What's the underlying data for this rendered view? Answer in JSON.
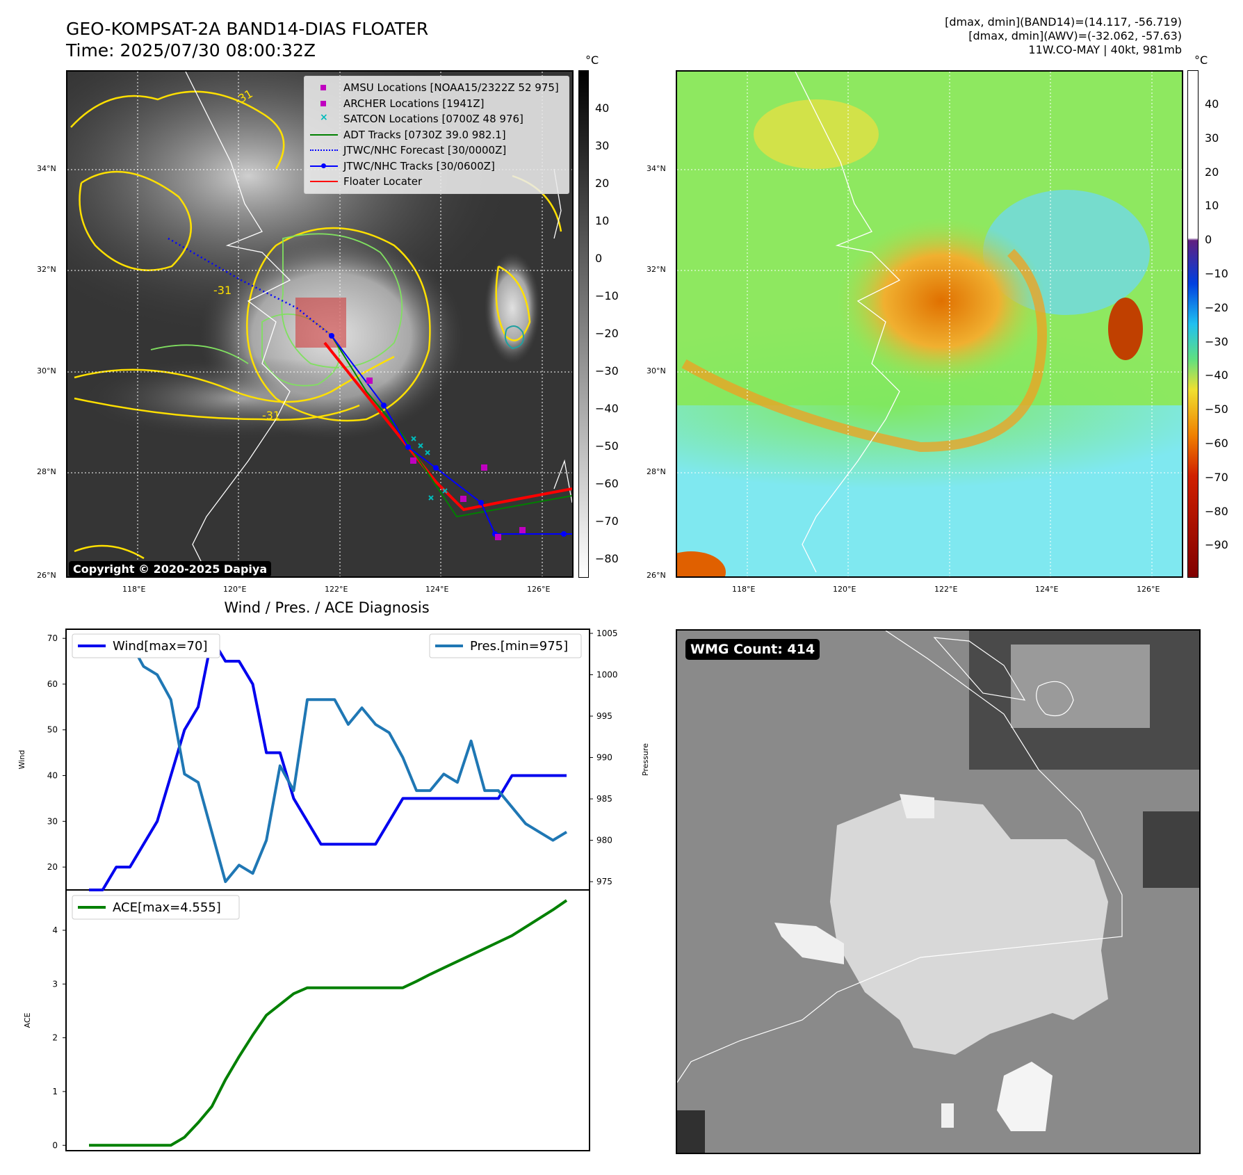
{
  "header": {
    "title_line1": "GEO-KOMPSAT-2A BAND14-DIAS FLOATER",
    "title_line2": "Time: 2025/07/30 08:00:32Z",
    "info_line1": "[dmax, dmin](BAND14)=(14.117, -56.719)",
    "info_line2": "[dmax, dmin](AWV)=(-32.062, -57.63)",
    "info_line3": "11W.CO-MAY | 40kt, 981mb"
  },
  "map_axes": {
    "lat_labels": [
      "34°N",
      "32°N",
      "30°N",
      "28°N",
      "26°N"
    ],
    "lon_labels": [
      "118°E",
      "120°E",
      "122°E",
      "124°E",
      "126°E"
    ],
    "contour_label": "-31"
  },
  "ir_panel": {
    "legend": [
      {
        "label": "AMSU Locations [NOAA15/2322Z 52 975]",
        "marker": "square",
        "color": "#c000c0"
      },
      {
        "label": "ARCHER Locations [1941Z]",
        "marker": "square",
        "color": "#c000c0"
      },
      {
        "label": "SATCON Locations [0700Z 48 976]",
        "marker": "x",
        "color": "#00bbbb"
      },
      {
        "label": "ADT Tracks [0730Z 39.0 982.1]",
        "marker": "line",
        "color": "#008000"
      },
      {
        "label": "JTWC/NHC Forecast [30/0000Z]",
        "marker": "dotted",
        "color": "#0000ff"
      },
      {
        "label": "JTWC/NHC Tracks [30/0600Z]",
        "marker": "line-dot",
        "color": "#0000ff"
      },
      {
        "label": "Floater Locater",
        "marker": "line",
        "color": "#ff0000"
      }
    ],
    "colorbar": {
      "unit": "°C",
      "ticks": [
        "40",
        "30",
        "20",
        "10",
        "0",
        "−10",
        "−20",
        "−30",
        "−40",
        "−50",
        "−60",
        "−70",
        "−80"
      ]
    },
    "copyright": "Copyright © 2020-2025 Dapiya"
  },
  "awv_panel": {
    "colorbar": {
      "unit": "°C",
      "ticks": [
        "40",
        "30",
        "20",
        "10",
        "0",
        "−10",
        "−20",
        "−30",
        "−40",
        "−50",
        "−60",
        "−70",
        "−80",
        "−90"
      ]
    }
  },
  "wmg_panel": {
    "label": "WMG Count: 414"
  },
  "chart_data": [
    {
      "type": "line",
      "title": "Wind / Pres. / ACE Diagnosis",
      "ylabel": "Wind",
      "y2label": "Pressure",
      "ylim": [
        15,
        72
      ],
      "y2lim": [
        974,
        1005.5
      ],
      "yticks": [
        20,
        30,
        40,
        50,
        60,
        70
      ],
      "y2ticks": [
        975,
        980,
        985,
        990,
        995,
        1000,
        1005
      ],
      "series": [
        {
          "name": "Wind[max=70]",
          "axis": "left",
          "color": "#0000ee",
          "values": [
            15,
            15,
            20,
            20,
            25,
            30,
            40,
            50,
            55,
            70,
            65,
            65,
            60,
            45,
            45,
            35,
            30,
            25,
            25,
            25,
            25,
            25,
            30,
            35,
            35,
            35,
            35,
            35,
            35,
            35,
            35,
            40,
            40,
            40,
            40,
            40
          ]
        },
        {
          "name": "Pres.[min=975]",
          "axis": "right",
          "color": "#1f77b4",
          "values": [
            1004,
            1004,
            1004,
            1004,
            1001,
            1000,
            997,
            988,
            987,
            981,
            975,
            977,
            976,
            980,
            989,
            986,
            997,
            997,
            997,
            994,
            996,
            994,
            993,
            990,
            986,
            986,
            988,
            987,
            992,
            986,
            986,
            984,
            982,
            981,
            980,
            981
          ]
        }
      ]
    },
    {
      "type": "line",
      "ylabel": "ACE",
      "ylim": [
        -0.1,
        4.75
      ],
      "yticks": [
        0,
        1,
        2,
        3,
        4
      ],
      "series": [
        {
          "name": "ACE[max=4.555]",
          "color": "#008000",
          "values": [
            0,
            0,
            0,
            0,
            0,
            0,
            0,
            0.15,
            0.42,
            0.72,
            1.22,
            1.65,
            2.05,
            2.42,
            2.62,
            2.82,
            2.93,
            2.93,
            2.93,
            2.93,
            2.93,
            2.93,
            2.93,
            2.93,
            3.05,
            3.18,
            3.3,
            3.42,
            3.54,
            3.66,
            3.78,
            3.9,
            4.06,
            4.22,
            4.38,
            4.555
          ]
        }
      ]
    }
  ]
}
